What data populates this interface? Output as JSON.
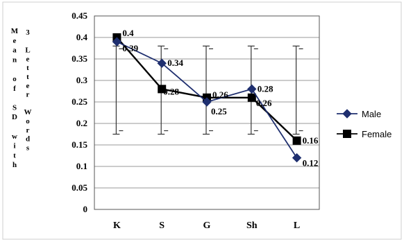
{
  "chart_data": {
    "type": "line",
    "categories": [
      "K",
      "S",
      "G",
      "Sh",
      "L"
    ],
    "series": [
      {
        "name": "Male",
        "values": [
          0.39,
          0.34,
          0.25,
          0.28,
          0.12
        ],
        "labels": [
          "0.39",
          "0.34",
          "0.25",
          "0.28",
          "0.12"
        ],
        "color": "#1f2f6f",
        "marker": "diamond"
      },
      {
        "name": "Female",
        "values": [
          0.4,
          0.28,
          0.26,
          0.26,
          0.16
        ],
        "labels": [
          "0.4",
          "0.28",
          "0.26",
          "0.26",
          "0.16"
        ],
        "color": "#000000",
        "marker": "square"
      }
    ],
    "error_bars": {
      "upper": [
        0.38,
        0.38,
        0.38,
        0.38,
        0.38
      ],
      "lower": [
        0.175,
        0.175,
        0.175,
        0.175,
        0.175
      ]
    },
    "ylim": [
      0,
      0.45
    ],
    "yticks": [
      "0",
      "0.05",
      "0.1",
      "0.15",
      "0.2",
      "0.25",
      "0.3",
      "0.35",
      "0.4",
      "0.45"
    ],
    "ylabel_col1": "Mean of SD with",
    "ylabel_col2": "3 Letter Words",
    "xlabel": "",
    "grid": true,
    "legend": "right"
  }
}
